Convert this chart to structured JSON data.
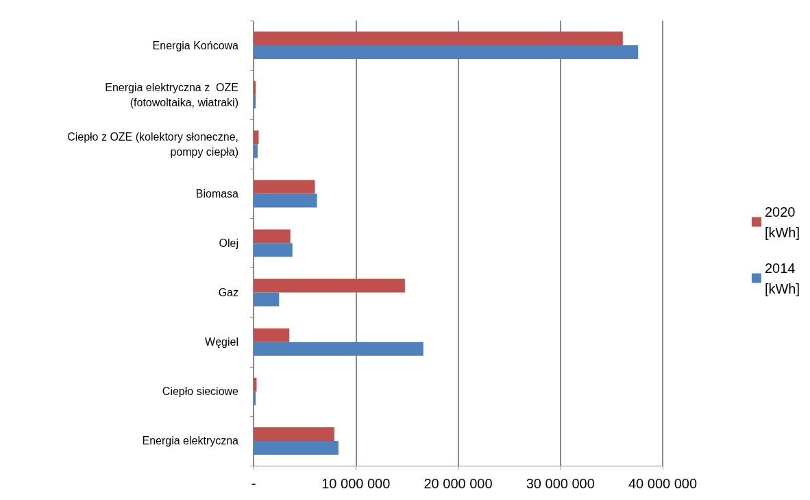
{
  "chart_data": {
    "type": "bar",
    "orientation": "horizontal",
    "categories": [
      "Energia Końcowa",
      "Energia elektryczna z  OZE\n(fotowoltaika, wiatraki)",
      "Ciepło z OZE (kolektory słoneczne,\npompy ciepła)",
      "Biomasa",
      "Olej",
      "Gaz",
      "Węgiel",
      "Ciepło sieciowe",
      "Energia elektryczna"
    ],
    "series": [
      {
        "name": "2020\n[kWh]",
        "color": "#c0504d",
        "values": [
          36100000,
          200000,
          500000,
          6000000,
          3600000,
          14800000,
          3500000,
          300000,
          7900000
        ]
      },
      {
        "name": "2014\n[kWh]",
        "color": "#4f81bd",
        "values": [
          37600000,
          200000,
          400000,
          6200000,
          3800000,
          2500000,
          16600000,
          200000,
          8300000
        ]
      }
    ],
    "xlim": [
      0,
      40000000
    ],
    "xticks": [
      {
        "value": 0,
        "label": "-"
      },
      {
        "value": 10000000,
        "label": "10 000 000"
      },
      {
        "value": 20000000,
        "label": "20 000 000"
      },
      {
        "value": 30000000,
        "label": "30 000 000"
      },
      {
        "value": 40000000,
        "label": "40 000 000"
      }
    ],
    "grid": "x",
    "legend": "right"
  }
}
